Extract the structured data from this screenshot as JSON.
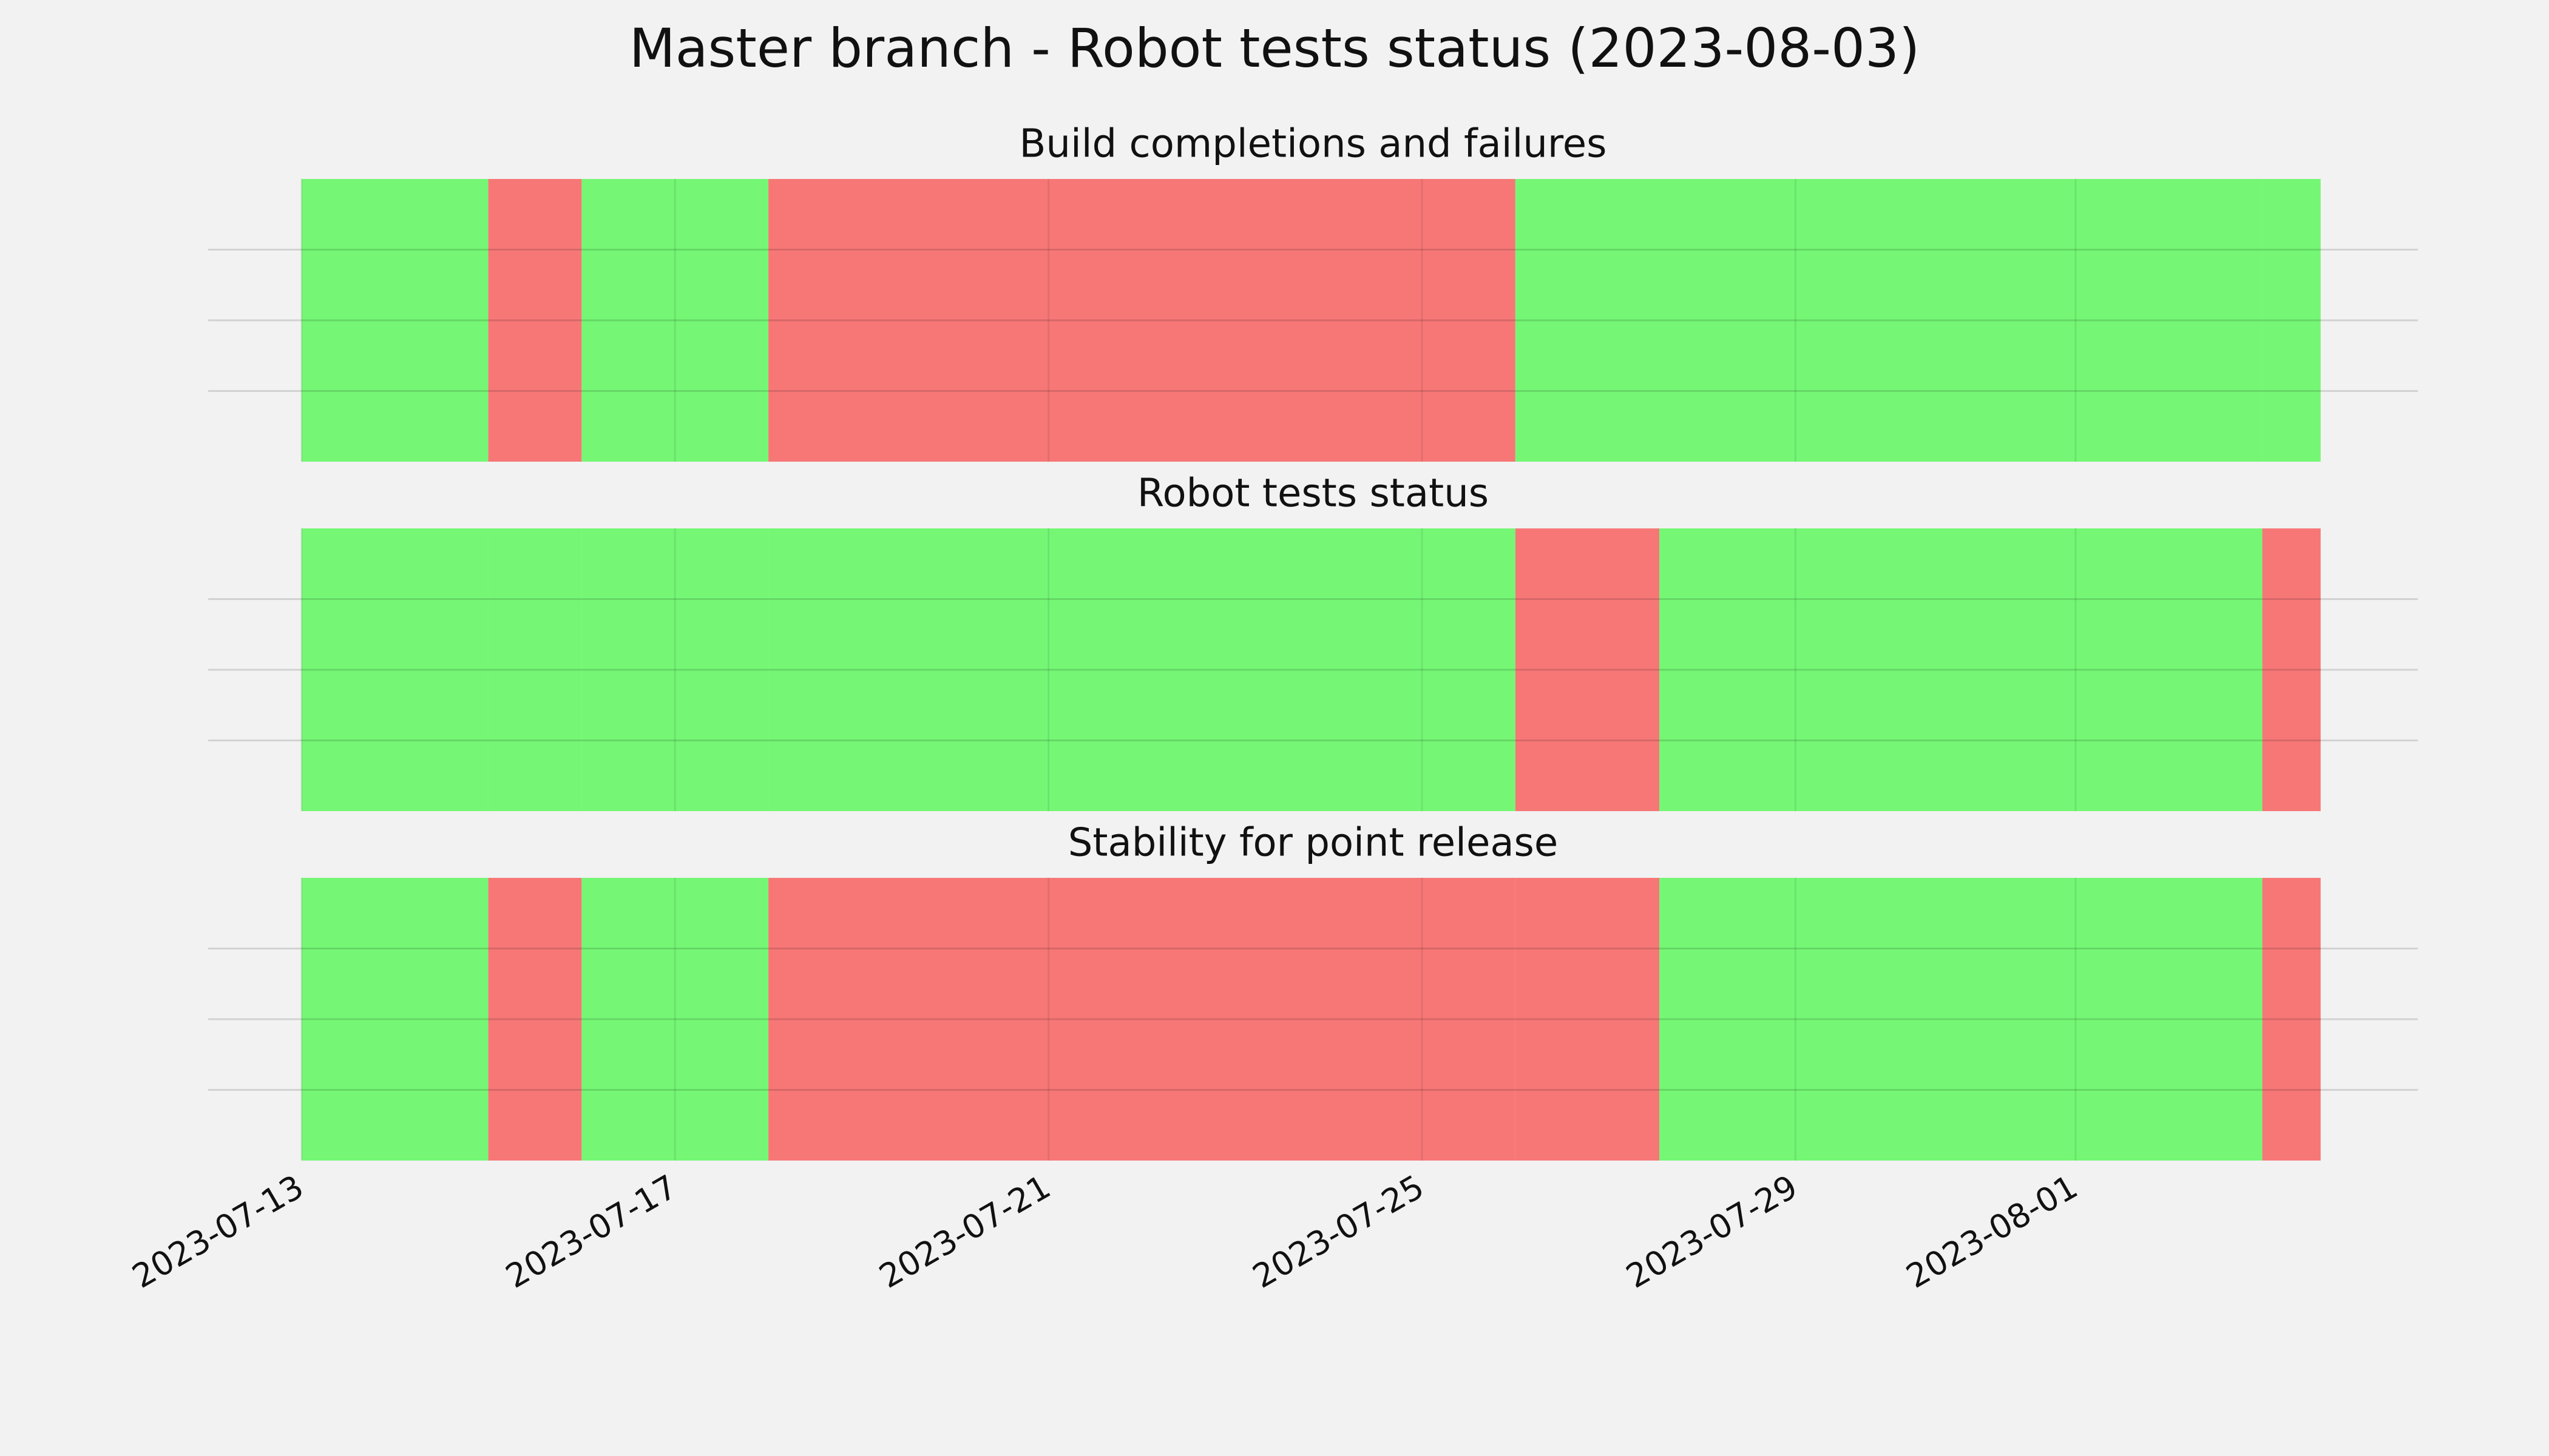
{
  "chart_data": {
    "type": "status-timeline",
    "title": "Master branch - Robot tests status (2023-08-03)",
    "x": [
      "2023-07-13",
      "2023-07-15",
      "2023-07-16",
      "2023-07-18",
      "2023-07-26",
      "2023-07-27T13:00",
      "2023-08-03",
      "2023-08-03T15:00"
    ],
    "xlim": [
      "2023-07-12",
      "2023-08-04T16:00"
    ],
    "xticks": [
      "2023-07-13",
      "2023-07-17",
      "2023-07-21",
      "2023-07-25",
      "2023-07-29",
      "2023-08-01"
    ],
    "ylim": [
      0,
      1
    ],
    "ygrid": [
      0.25,
      0.5,
      0.75
    ],
    "grid": true,
    "pass_color": "#75f775",
    "fail_color": "#f77777",
    "panels": [
      {
        "title": "Build completions and failures",
        "values": [
          1,
          0,
          1,
          0,
          1,
          1,
          1
        ]
      },
      {
        "title": "Robot tests status",
        "values": [
          1,
          1,
          1,
          1,
          0,
          1,
          0
        ]
      },
      {
        "title": "Stability for point release",
        "values": [
          1,
          0,
          1,
          0,
          0,
          1,
          0
        ]
      }
    ]
  }
}
